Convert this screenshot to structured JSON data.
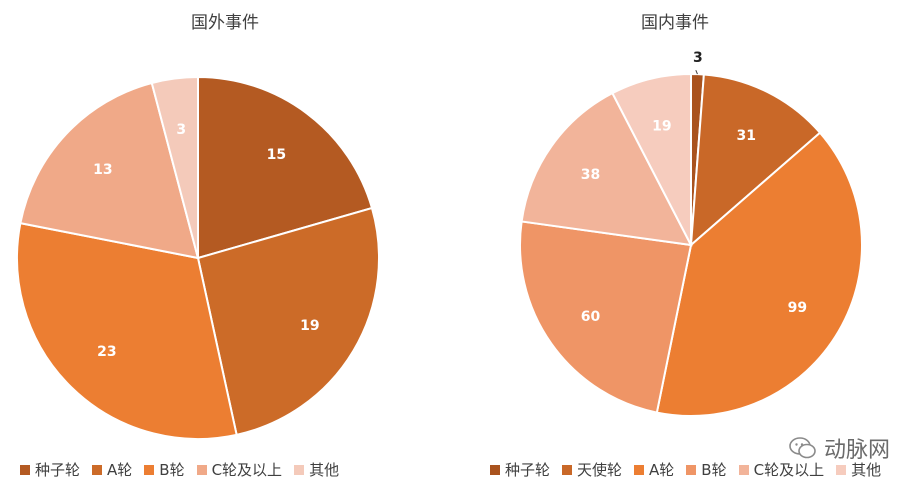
{
  "chart_data": [
    {
      "type": "pie",
      "title": "国外事件",
      "categories": [
        "种子轮",
        "A轮",
        "B轮",
        "C轮及以上",
        "其他"
      ],
      "values": [
        15,
        19,
        23,
        13,
        3
      ],
      "colors": [
        "#B45A22",
        "#CC6B28",
        "#EC7E32",
        "#F0A988",
        "#F4CABA"
      ],
      "legend_position": "bottom"
    },
    {
      "type": "pie",
      "title": "国内事件",
      "categories": [
        "种子轮",
        "天使轮",
        "A轮",
        "B轮",
        "C轮及以上",
        "其他"
      ],
      "values": [
        3,
        31,
        99,
        60,
        38,
        19
      ],
      "colors": [
        "#A9531E",
        "#C96828",
        "#EC7E32",
        "#EF9566",
        "#F2B49A",
        "#F6CCBE"
      ],
      "legend_position": "bottom"
    }
  ],
  "watermark": "动脉网"
}
